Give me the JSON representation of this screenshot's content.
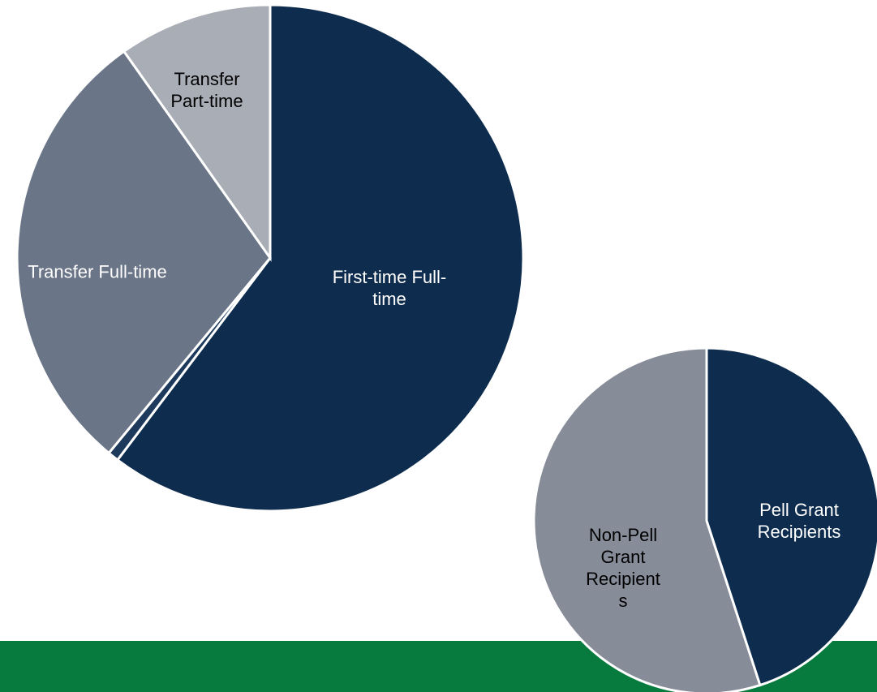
{
  "chart_data": [
    {
      "type": "pie",
      "categories": [
        "First-time Full-time",
        null,
        "Transfer Full-time",
        "Transfer Part-time"
      ],
      "values": [
        60.3,
        0.7,
        29.2,
        9.8
      ],
      "colors": [
        "#0e2d4e",
        "#1d3a5c",
        "#6a7587",
        "#a9adb6"
      ]
    },
    {
      "type": "pie",
      "categories": [
        "Pell Grant Recipients",
        "Non-Pell Grant Recipients"
      ],
      "values": [
        45,
        55
      ],
      "colors": [
        "#0e2d4e",
        "#878c99"
      ]
    }
  ]
}
